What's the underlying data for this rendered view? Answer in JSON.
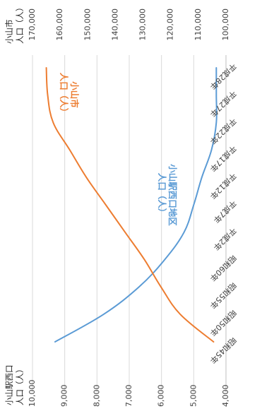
{
  "chart_data": {
    "type": "line",
    "orientation": "rotated-90-clockwise",
    "categories": [
      "昭和45年",
      "昭和50年",
      "昭和55年",
      "昭和60年",
      "平成2年",
      "平成7年",
      "平成12年",
      "平成17年",
      "平成22年",
      "平成27年",
      "平成28年"
    ],
    "left_axis": {
      "title_line1": "小山駅西口",
      "title_line2": "人口（人）",
      "ticks": [
        "10,000",
        "9,000",
        "8,000",
        "7,000",
        "6,000",
        "5,000",
        "4,000"
      ],
      "range": [
        4000,
        10000
      ]
    },
    "right_axis": {
      "title_line1": "小山市",
      "title_line2": "人口（人）",
      "ticks": [
        "170,000",
        "160,000",
        "150,000",
        "140,000",
        "130,000",
        "120,000",
        "110,000",
        "100,000"
      ],
      "range": [
        100000,
        170000
      ]
    },
    "series": [
      {
        "name": "小山駅西口地区\n人口（人）",
        "axis": "left",
        "color": "#5b9bd5",
        "values": [
          9300,
          7800,
          6700,
          5900,
          5300,
          5000,
          4750,
          4450,
          4300,
          4300,
          4300
        ]
      },
      {
        "name": "小山市\n人口（人）",
        "axis": "right",
        "color": "#ed7d31",
        "values": [
          104500,
          116500,
          123500,
          129500,
          136500,
          143500,
          150500,
          156500,
          162500,
          164500,
          165000
        ]
      }
    ],
    "grid": true,
    "legend": "inline-labels"
  }
}
